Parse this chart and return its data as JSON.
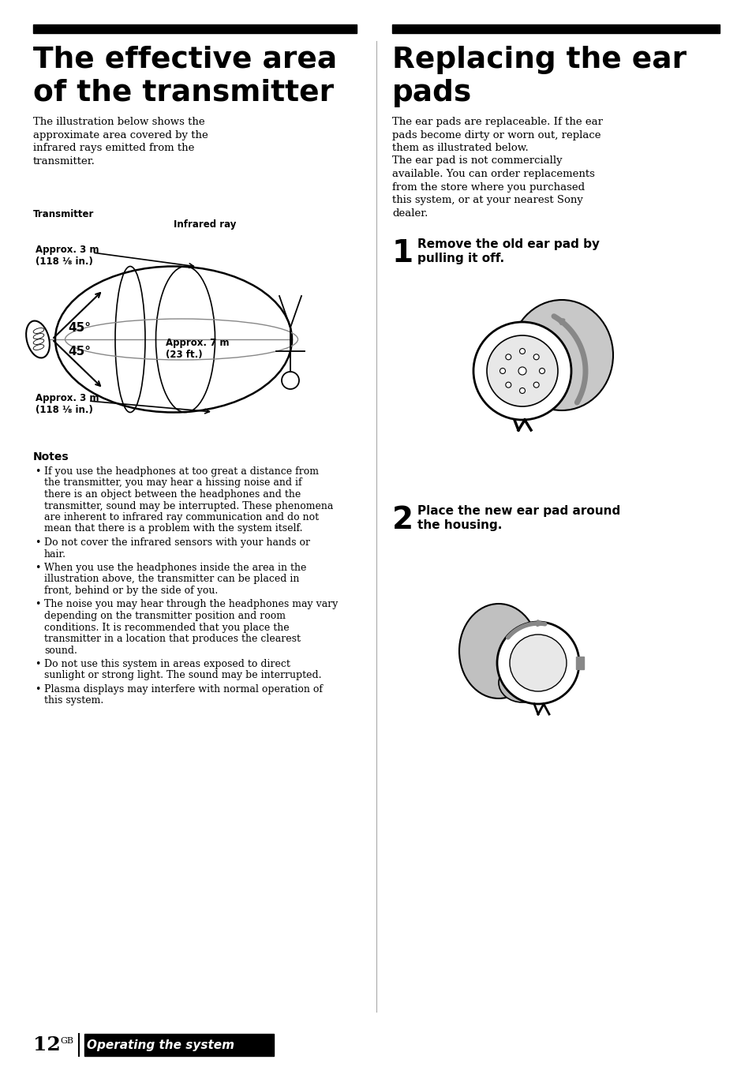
{
  "bg_color": "#ffffff",
  "left_title_line1": "The effective area",
  "left_title_line2": "of the transmitter",
  "right_title_line1": "Replacing the ear",
  "right_title_line2": "pads",
  "left_body": "The illustration below shows the\napproximate area covered by the\ninfrared rays emitted from the\ntransmitter.",
  "right_body_p1": "The ear pads are replaceable. If the ear\npads become dirty or worn out, replace\nthem as illustrated below.",
  "right_body_p2": "The ear pad is not commercially\navailable. You can order replacements\nfrom the store where you purchased\nthis system, or at your nearest Sony\ndealer.",
  "transmitter_label": "Transmitter",
  "infrared_label": "Infrared ray",
  "approx_top": "Approx. 3 m\n(118 ¹⁄₈ in.)",
  "approx_mid": "Approx. 7 m\n(23 ft.)",
  "approx_bot": "Approx. 3 m\n(118 ¹⁄₈ in.)",
  "angle1": "45°",
  "angle2": "45°",
  "notes_title": "Notes",
  "notes": [
    "If you use the headphones at too great a distance from the transmitter, you may hear a hissing noise and if there is an object between the headphones and the transmitter, sound may be interrupted. These phenomena are inherent to infrared ray communication and do not mean that there is a problem with the system itself.",
    "Do not cover the infrared sensors with your hands or hair.",
    "When you use the headphones inside the area in the illustration above, the transmitter can be placed in front, behind or by the side of you.",
    "The noise you may hear through the headphones may vary depending on the transmitter position and room conditions. It is recommended that you place the transmitter in a location that produces the clearest sound.",
    "Do not use this system in areas exposed to direct sunlight or strong light. The sound may be interrupted.",
    "Plasma displays may interfere with normal operation of this system."
  ],
  "step1_num": "1",
  "step1_text_line1": "Remove the old ear pad by",
  "step1_text_line2": "pulling it off.",
  "step2_num": "2",
  "step2_text_line1": "Place the new ear pad around",
  "step2_text_line2": "the housing.",
  "footer_page": "12",
  "footer_sup": "GB",
  "footer_text": "Operating the system",
  "footer_bar_color": "#000000",
  "header_bar_color": "#000000",
  "divider_color": "#aaaaaa"
}
